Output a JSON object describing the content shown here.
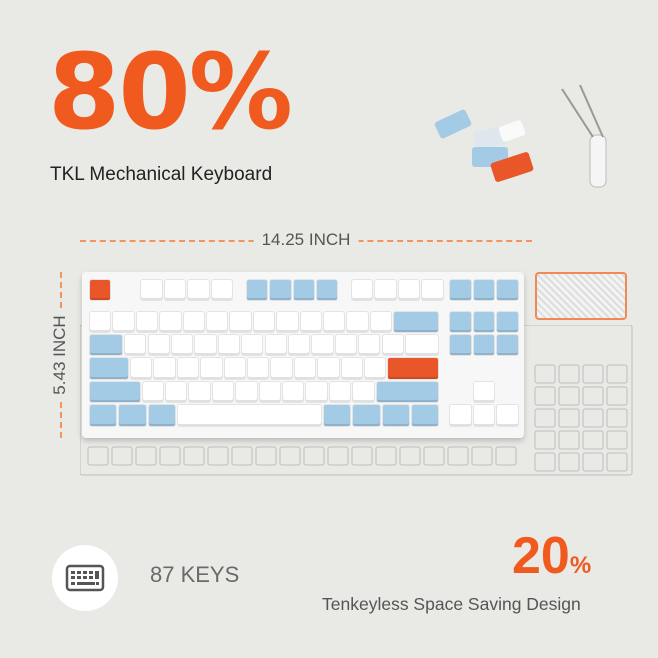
{
  "headline": "80%",
  "subtitle": "TKL Mechanical Keyboard",
  "width_label": "14.25 INCH",
  "height_label": "5.43 INCH",
  "keys_label": "87 KEYS",
  "space_percent": "20",
  "percent_sign": "%",
  "space_tagline": "Tenkeyless Space Saving Design",
  "icons": {
    "feature": "keyboard-icon"
  },
  "colors": {
    "accent": "#f05a1e",
    "key_blue": "#a3cbe6",
    "key_white": "#ffffff",
    "key_orange": "#e8562a"
  }
}
